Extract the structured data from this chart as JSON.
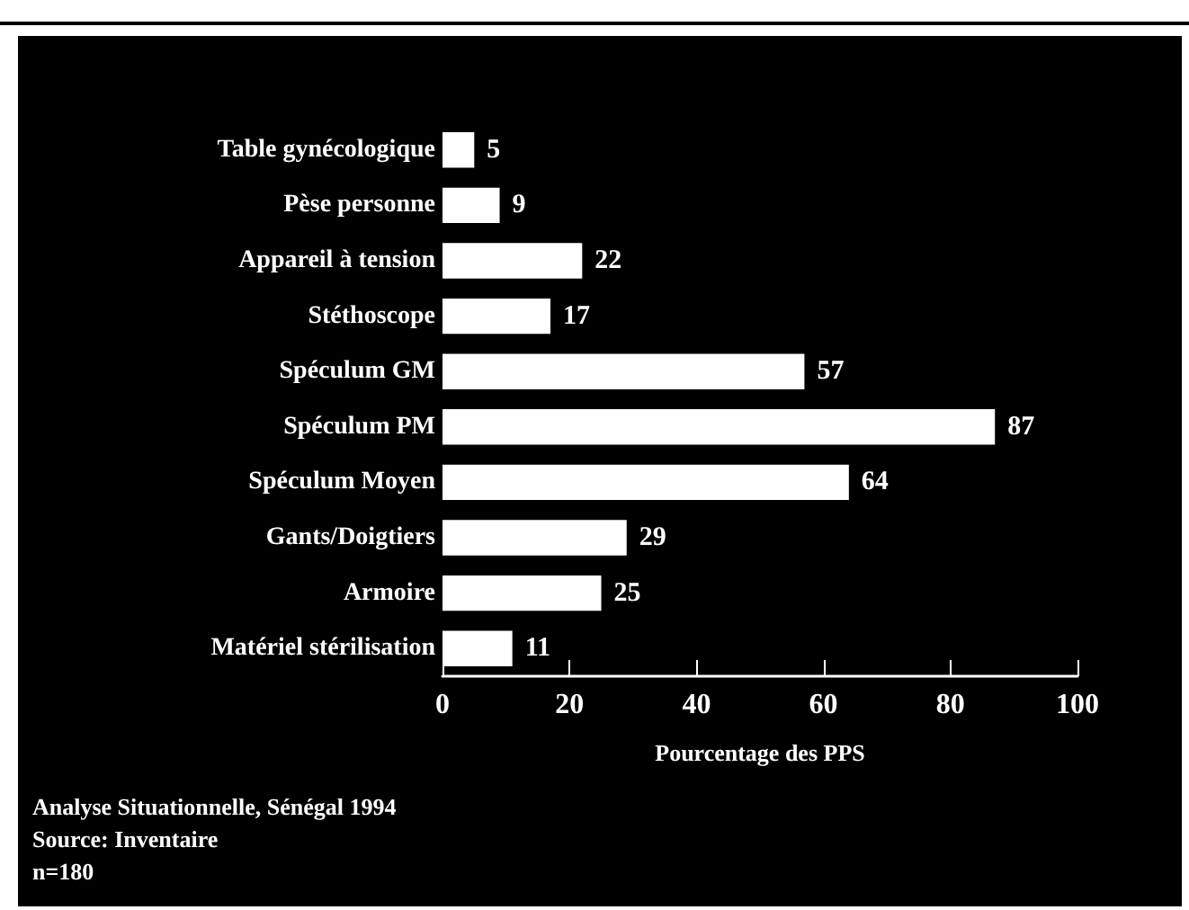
{
  "chart_data": {
    "type": "bar",
    "orientation": "horizontal",
    "xlabel": "Pourcentage des PPS",
    "categories": [
      "Table gynécologique",
      "Pèse personne",
      "Appareil à tension",
      "Stéthoscope",
      "Spéculum GM",
      "Spéculum PM",
      "Spéculum Moyen",
      "Gants/Doigtiers",
      "Armoire",
      "Matériel stérilisation"
    ],
    "values": [
      5,
      9,
      22,
      17,
      57,
      87,
      64,
      29,
      25,
      11
    ],
    "color": "#ffffff",
    "xlim": [
      0,
      100
    ],
    "xticks": [
      0,
      20,
      40,
      60,
      80,
      100
    ],
    "data_labels": true,
    "annotations": [
      "Analyse Situationnelle, Sénégal 1994",
      "Source: Inventaire",
      "n=180"
    ]
  }
}
